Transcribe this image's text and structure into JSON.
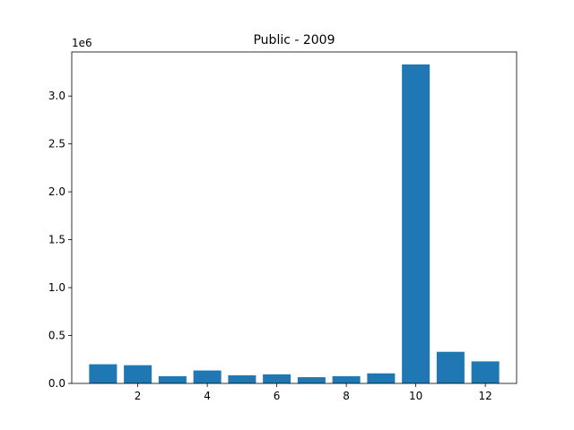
{
  "chart_data": {
    "type": "bar",
    "title": "Public - 2009",
    "xlabel": "",
    "ylabel": "",
    "x": [
      1,
      2,
      3,
      4,
      5,
      6,
      7,
      8,
      9,
      10,
      11,
      12
    ],
    "values": [
      200000,
      190000,
      75000,
      135000,
      85000,
      95000,
      65000,
      75000,
      105000,
      3330000,
      330000,
      230000
    ],
    "xlim": [
      0.1,
      12.9
    ],
    "ylim": [
      0,
      3460000
    ],
    "xticks": [
      2,
      4,
      6,
      8,
      10,
      12
    ],
    "xtick_labels": [
      "2",
      "4",
      "6",
      "8",
      "10",
      "12"
    ],
    "yticks": [
      0,
      500000,
      1000000,
      1500000,
      2000000,
      2500000,
      3000000
    ],
    "ytick_labels": [
      "0.0",
      "0.5",
      "1.0",
      "1.5",
      "2.0",
      "2.5",
      "3.0"
    ],
    "y_scale_label": "1e6",
    "bar_width": 0.8,
    "bar_color": "#1f77b4",
    "grid": false,
    "legend": "none"
  }
}
